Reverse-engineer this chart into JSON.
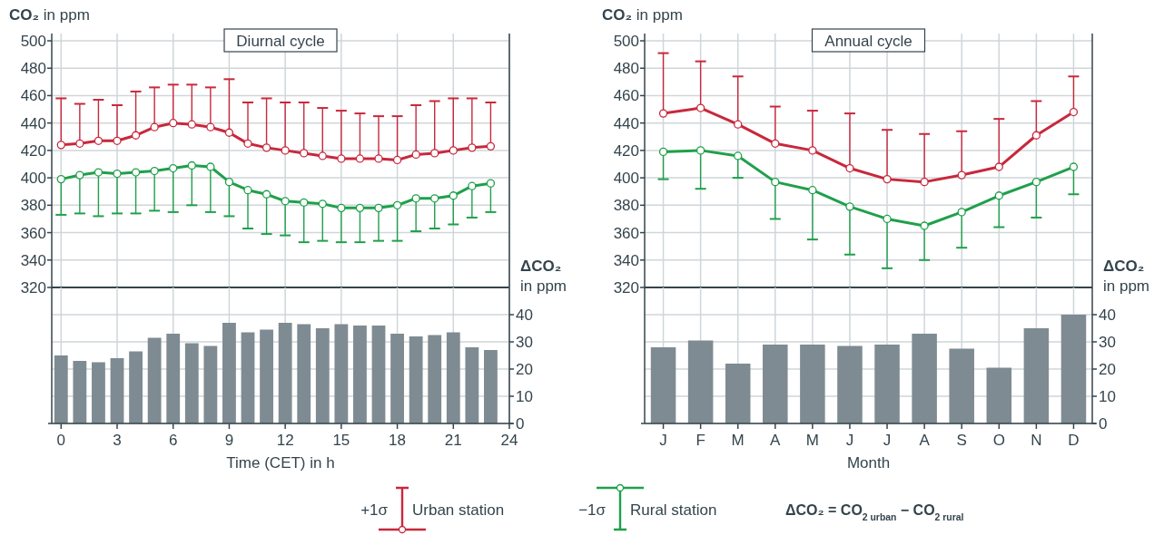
{
  "chart_data": [
    {
      "type": "line",
      "title": "Diurnal cycle",
      "ylabel": "CO₂ in ppm",
      "x": [
        0,
        1,
        2,
        3,
        4,
        5,
        6,
        7,
        8,
        9,
        10,
        11,
        12,
        13,
        14,
        15,
        16,
        17,
        18,
        19,
        20,
        21,
        22,
        23
      ],
      "xlim": [
        -0.5,
        24
      ],
      "xticks": [
        0,
        3,
        6,
        9,
        12,
        15,
        18,
        21,
        24
      ],
      "tick_labels": "y",
      "ylim": [
        320,
        500
      ],
      "yticks": [
        320,
        340,
        360,
        380,
        400,
        420,
        440,
        460,
        480,
        500
      ],
      "grid": true,
      "marker": "circle",
      "legend": "bottom",
      "annotations": [
        "+1σ",
        "−1σ",
        "ΔCO₂ = CO$_{2 urban}$ − CO$_{2 rural}$"
      ],
      "series": [
        {
          "name": "Urban station",
          "color": "#c8283c",
          "values": [
            424,
            425,
            427,
            427,
            431,
            437,
            440,
            439,
            437,
            433,
            425,
            422,
            420,
            418,
            416,
            414,
            414,
            414,
            413,
            417,
            418,
            420,
            422,
            423
          ],
          "errors": [
            [
              424,
              458
            ],
            [
              425,
              454
            ],
            [
              427,
              457
            ],
            [
              427,
              453
            ],
            [
              431,
              463
            ],
            [
              437,
              466
            ],
            [
              440,
              468
            ],
            [
              439,
              468
            ],
            [
              437,
              466
            ],
            [
              433,
              472
            ],
            [
              425,
              455
            ],
            [
              422,
              458
            ],
            [
              420,
              455
            ],
            [
              418,
              455
            ],
            [
              416,
              451
            ],
            [
              414,
              449
            ],
            [
              414,
              447
            ],
            [
              414,
              445
            ],
            [
              413,
              445
            ],
            [
              417,
              453
            ],
            [
              418,
              456
            ],
            [
              420,
              458
            ],
            [
              422,
              458
            ],
            [
              423,
              455
            ]
          ]
        },
        {
          "name": "Rural station",
          "color": "#1fa04a",
          "values": [
            399,
            402,
            404,
            403,
            404,
            405,
            407,
            409,
            408,
            397,
            391,
            388,
            383,
            382,
            381,
            378,
            378,
            378,
            380,
            385,
            385,
            387,
            394,
            396
          ],
          "errors": [
            [
              373,
              399
            ],
            [
              374,
              402
            ],
            [
              372,
              404
            ],
            [
              374,
              403
            ],
            [
              374,
              404
            ],
            [
              376,
              405
            ],
            [
              375,
              407
            ],
            [
              380,
              409
            ],
            [
              375,
              408
            ],
            [
              372,
              397
            ],
            [
              363,
              391
            ],
            [
              359,
              388
            ],
            [
              358,
              383
            ],
            [
              353,
              382
            ],
            [
              354,
              381
            ],
            [
              353,
              378
            ],
            [
              353,
              378
            ],
            [
              354,
              378
            ],
            [
              354,
              380
            ],
            [
              361,
              385
            ],
            [
              363,
              385
            ],
            [
              366,
              387
            ],
            [
              371,
              394
            ],
            [
              375,
              396
            ]
          ]
        }
      ]
    },
    {
      "type": "bar",
      "xlabel": "Time (CET) in h",
      "y2label": "ΔCO₂ in ppm",
      "x": [
        0,
        1,
        2,
        3,
        4,
        5,
        6,
        7,
        8,
        9,
        10,
        11,
        12,
        13,
        14,
        15,
        16,
        17,
        18,
        19,
        20,
        21,
        22,
        23
      ],
      "xlim": [
        -0.5,
        24
      ],
      "xticks": [
        0,
        3,
        6,
        9,
        12,
        15,
        18,
        21,
        24
      ],
      "y2lim": [
        0,
        50
      ],
      "y2ticks": [
        0,
        10,
        20,
        30,
        40
      ],
      "grid": true,
      "series": [
        {
          "axis": "y2",
          "color": "#7e8b92",
          "values": [
            25,
            23,
            22.5,
            24,
            26.5,
            31.5,
            33,
            29.5,
            28.5,
            37,
            33.5,
            34.5,
            37,
            36.5,
            35,
            36.5,
            36,
            36,
            33,
            32,
            32.5,
            33.5,
            28,
            27
          ]
        }
      ]
    },
    {
      "type": "line",
      "title": "Annual cycle",
      "ylabel": "CO₂ in ppm",
      "categories": [
        null,
        null,
        null,
        null,
        null,
        null,
        null,
        null,
        null,
        null,
        null,
        null
      ],
      "tick_labels": "y",
      "ylim": [
        320,
        500
      ],
      "yticks": [
        320,
        340,
        360,
        380,
        400,
        420,
        440,
        460,
        480,
        500
      ],
      "grid": true,
      "marker": "circle",
      "series": [
        {
          "color": "#c8283c",
          "values": [
            447,
            451,
            439,
            425,
            420,
            407,
            399,
            397,
            402,
            408,
            431,
            448
          ],
          "errors": [
            [
              447,
              491
            ],
            [
              451,
              485
            ],
            [
              439,
              474
            ],
            [
              425,
              452
            ],
            [
              420,
              449
            ],
            [
              407,
              447
            ],
            [
              399,
              435
            ],
            [
              397,
              432
            ],
            [
              402,
              434
            ],
            [
              408,
              443
            ],
            [
              431,
              456
            ],
            [
              448,
              474
            ]
          ]
        },
        {
          "color": "#1fa04a",
          "values": [
            419,
            420,
            416,
            397,
            391,
            379,
            370,
            365,
            375,
            387,
            397,
            408
          ],
          "errors": [
            [
              399,
              419
            ],
            [
              392,
              420
            ],
            [
              400,
              416
            ],
            [
              370,
              397
            ],
            [
              355,
              391
            ],
            [
              344,
              379
            ],
            [
              334,
              370
            ],
            [
              340,
              365
            ],
            [
              349,
              375
            ],
            [
              364,
              387
            ],
            [
              371,
              397
            ],
            [
              388,
              408
            ]
          ]
        }
      ]
    },
    {
      "type": "bar",
      "xlabel": "Month",
      "y2label": "ΔCO₂ in ppm",
      "categories": [
        "J",
        "F",
        "M",
        "A",
        "M",
        "J",
        "J",
        "A",
        "S",
        "O",
        "N",
        "D"
      ],
      "y2lim": [
        0,
        50
      ],
      "y2ticks": [
        0,
        10,
        20,
        30,
        40
      ],
      "grid": true,
      "series": [
        {
          "axis": "y2",
          "color": "#7e8b92",
          "values": [
            28,
            30.5,
            22,
            29,
            29,
            28.5,
            29,
            33,
            27.5,
            20.5,
            35,
            40
          ]
        }
      ]
    }
  ]
}
